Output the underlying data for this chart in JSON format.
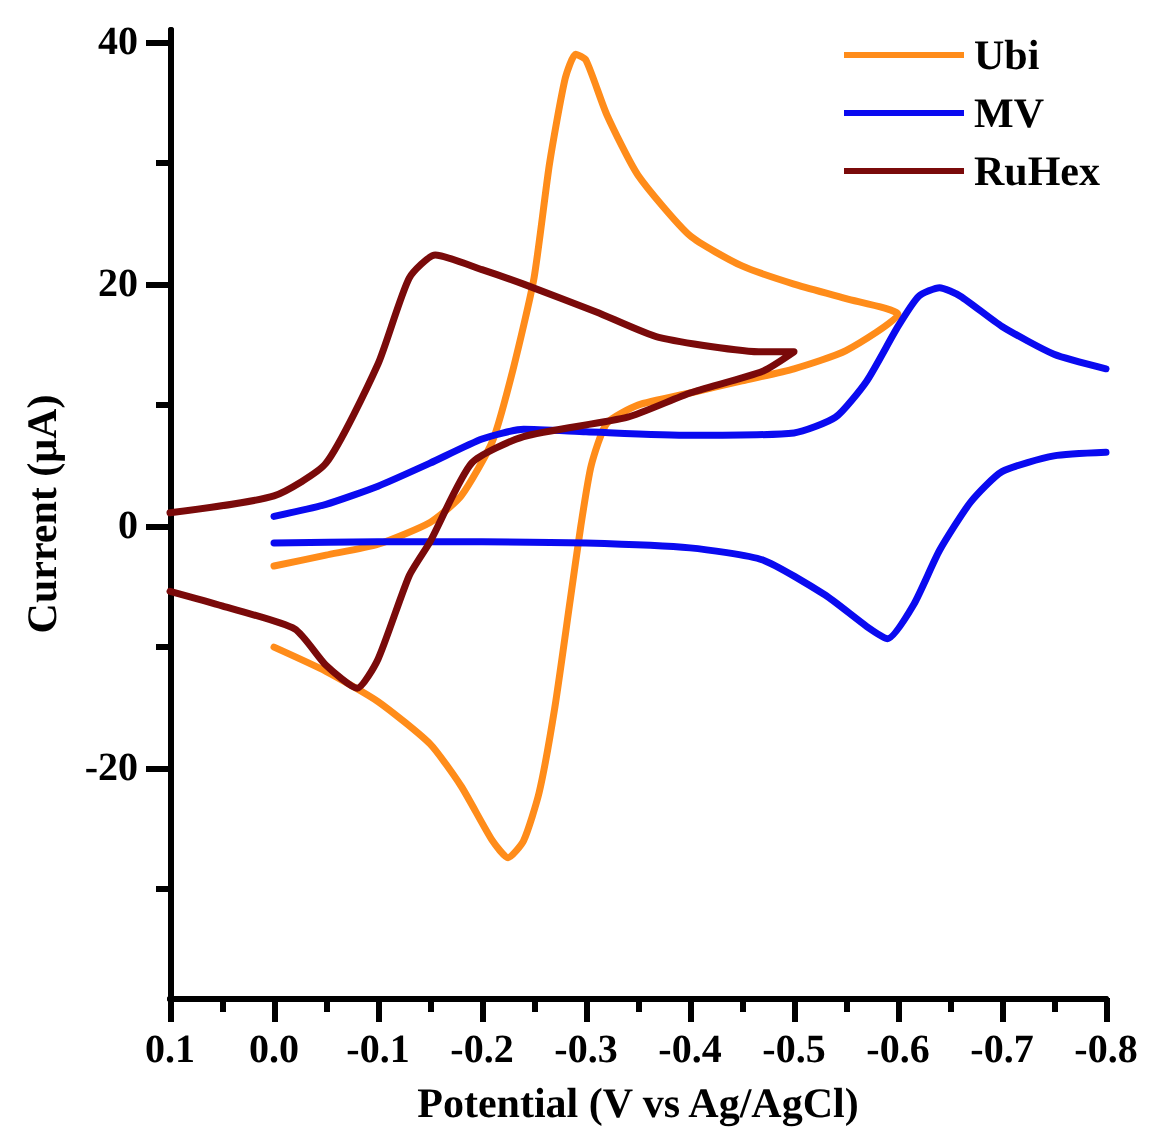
{
  "chart_data": {
    "type": "line",
    "xlabel": "Potential (V vs Ag/AgCl)",
    "ylabel": "Current (μA)",
    "xlim": [
      0.1,
      -0.8
    ],
    "xticks": [
      0.1,
      {
        "value": 0.05,
        "label": null
      },
      {
        "value": 0,
        "label": "0.0"
      },
      {
        "value": -0.05,
        "label": null
      },
      -0.1,
      {
        "value": -0.15,
        "label": null
      },
      -0.2,
      {
        "value": -0.25,
        "label": null
      },
      -0.3,
      {
        "value": -0.35,
        "label": null
      },
      -0.4,
      {
        "value": -0.45,
        "label": null
      },
      -0.5,
      {
        "value": -0.55,
        "label": null
      },
      -0.6,
      {
        "value": -0.65,
        "label": null
      },
      -0.7,
      {
        "value": -0.75,
        "label": null
      },
      -0.8
    ],
    "ylim": [
      -39,
      41
    ],
    "yticks": [
      {
        "value": -30,
        "label": null
      },
      -20,
      {
        "value": -10,
        "label": null
      },
      0,
      {
        "value": 10,
        "label": null
      },
      20,
      {
        "value": 30,
        "label": null
      },
      40
    ],
    "grid": false,
    "legend": "top right",
    "marker": "none",
    "line_style": "solid",
    "series": [
      {
        "name": "Ubi",
        "color": "#ff8c1a",
        "x": [
          0,
          -0.05,
          -0.1,
          -0.15,
          -0.18,
          -0.21,
          -0.23,
          -0.25,
          -0.265,
          -0.28,
          -0.29,
          -0.3,
          -0.32,
          -0.35,
          -0.4,
          -0.45,
          -0.5,
          -0.55,
          -0.6,
          -0.55,
          -0.5,
          -0.45,
          -0.4,
          -0.35,
          -0.32,
          -0.305,
          -0.295,
          -0.285,
          -0.27,
          -0.255,
          -0.24,
          -0.225,
          -0.21,
          -0.18,
          -0.15,
          -0.1,
          -0.05,
          0
        ],
        "values": [
          -3.3,
          -2.4,
          -1.5,
          0.3,
          2.5,
          7,
          13,
          20.5,
          30,
          37,
          39,
          38.5,
          34,
          29,
          24,
          21.5,
          20,
          18.8,
          17.5,
          14.5,
          13,
          12,
          11,
          10,
          8.5,
          5,
          0,
          -6,
          -15,
          -22,
          -26,
          -27.4,
          -26,
          -21.5,
          -18,
          -14.5,
          -12,
          -10
        ]
      },
      {
        "name": "MV",
        "color": "#0a0af0",
        "x": [
          0,
          -0.05,
          -0.1,
          -0.15,
          -0.2,
          -0.24,
          -0.3,
          -0.4,
          -0.5,
          -0.54,
          -0.57,
          -0.6,
          -0.62,
          -0.64,
          -0.66,
          -0.7,
          -0.75,
          -0.8
        ],
        "values": [
          0.8,
          1.8,
          3.3,
          5.2,
          7.2,
          8,
          7.8,
          7.5,
          7.7,
          9,
          12,
          16.5,
          19,
          19.7,
          19,
          16.5,
          14.2,
          13
        ]
      },
      {
        "color": "#0a0af0",
        "x": [
          -0.8,
          -0.75,
          -0.7,
          -0.67,
          -0.64,
          -0.615,
          -0.59,
          -0.57,
          -0.53,
          -0.47,
          -0.4,
          -0.3,
          -0.2,
          -0.1,
          0
        ],
        "values": [
          6.1,
          5.8,
          4.5,
          2,
          -2,
          -6.5,
          -9.3,
          -8.3,
          -5.7,
          -2.8,
          -1.8,
          -1.4,
          -1.3,
          -1.3,
          -1.4
        ]
      },
      {
        "name": "RuHex",
        "color": "#7a0a0a",
        "x": [
          0.1,
          0,
          -0.05,
          -0.1,
          -0.13,
          -0.155,
          -0.2,
          -0.24,
          -0.31,
          -0.37,
          -0.47,
          -0.5,
          -0.47,
          -0.4,
          -0.34,
          -0.24,
          -0.19,
          -0.15,
          -0.13,
          -0.1,
          -0.08,
          -0.05,
          -0.02,
          0.05,
          0.1
        ],
        "values": [
          1.1,
          2.5,
          5.2,
          13.4,
          20.5,
          22.4,
          21.2,
          20,
          17.7,
          15.6,
          14.4,
          14.4,
          12.8,
          11,
          9,
          7.4,
          5.2,
          -1.3,
          -4.1,
          -11,
          -13.4,
          -11.5,
          -8.5,
          -6.6,
          -5.4
        ]
      }
    ]
  }
}
